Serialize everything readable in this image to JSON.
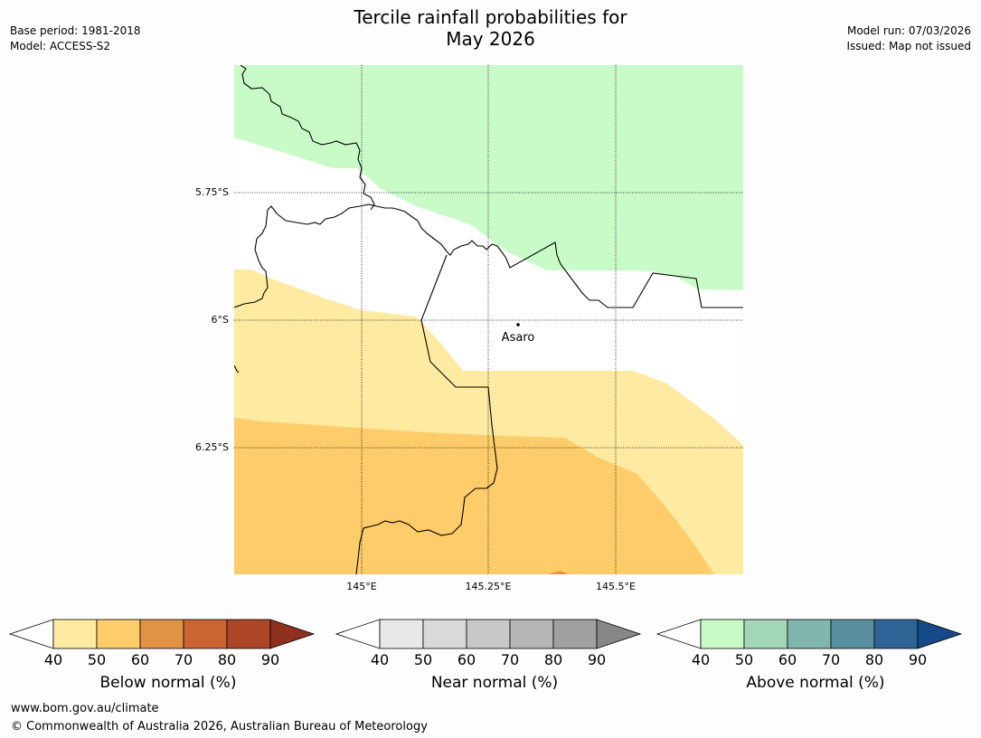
{
  "header": {
    "title_line1": "Tercile rainfall probabilities for",
    "title_line2": "May 2026",
    "base_period": "Base period: 1981-2018",
    "model": "Model: ACCESS-S2",
    "model_run": "Model run: 07/03/2026",
    "issued": "Issued: Map not issued"
  },
  "map": {
    "lat_labels": [
      "5.75°S",
      "6°S",
      "6.25°S"
    ],
    "lon_labels": [
      "145°E",
      "145.25°E",
      "145.5°E"
    ],
    "place": "Asaro",
    "colors": {
      "above_40": "#c9fbc9",
      "below_40": "#feeaa0",
      "below_50": "#fecc6a",
      "below_60": "#e09245"
    }
  },
  "legends": [
    {
      "label": "Below normal (%)",
      "ticks": [
        "40",
        "50",
        "60",
        "70",
        "80",
        "90"
      ],
      "colors": [
        "#feeaa0",
        "#fecc6a",
        "#e09245",
        "#cb6433",
        "#ad4527"
      ],
      "extend_color": "#8e2f1f"
    },
    {
      "label": "Near normal (%)",
      "ticks": [
        "40",
        "50",
        "60",
        "70",
        "80",
        "90"
      ],
      "colors": [
        "#e8e8e8",
        "#d9d9d9",
        "#c8c8c8",
        "#b5b5b5",
        "#a0a0a0"
      ],
      "extend_color": "#878787"
    },
    {
      "label": "Above normal (%)",
      "ticks": [
        "40",
        "50",
        "60",
        "70",
        "80",
        "90"
      ],
      "colors": [
        "#c9fbc9",
        "#a3d6b7",
        "#80b6ad",
        "#5a909e",
        "#2f6497"
      ],
      "extend_color": "#154a88"
    }
  ],
  "footer": {
    "url": "www.bom.gov.au/climate",
    "copyright": "© Commonwealth of Australia 2026, Australian Bureau of Meteorology"
  }
}
